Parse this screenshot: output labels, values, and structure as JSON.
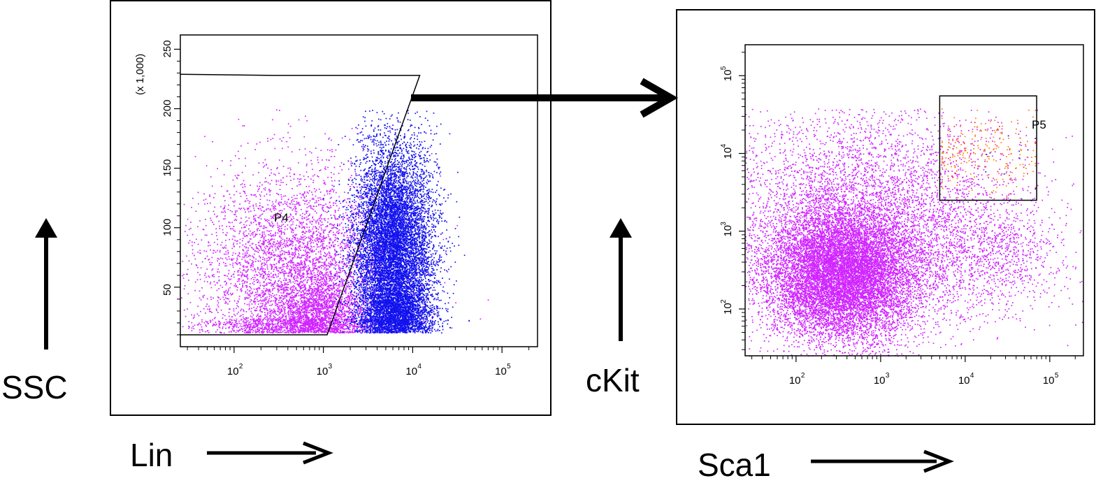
{
  "figure": {
    "ssc_label": "SSC",
    "ckit_label": "cKit",
    "lin_label": "Lin",
    "sca1_label": "Sca1"
  },
  "colors": {
    "magenta": "#d024ff",
    "blue": "#1212ee",
    "orange": "#ff7a1a",
    "red": "#ff1d2a",
    "axis": "#000000"
  },
  "chart_data": [
    {
      "type": "scatter",
      "name": "left-plot",
      "title": "",
      "xlabel": "Lin",
      "ylabel": "SSC",
      "x_scale": "log",
      "x_range": [
        25,
        250000
      ],
      "x_ticks": [
        {
          "value": 100,
          "base": "10",
          "exp": "2"
        },
        {
          "value": 1000,
          "base": "10",
          "exp": "3"
        },
        {
          "value": 10000,
          "base": "10",
          "exp": "4"
        },
        {
          "value": 100000,
          "base": "10",
          "exp": "5"
        }
      ],
      "y_scale": "linear",
      "y_range": [
        0,
        262000
      ],
      "y_multiplier": "(x 1,000)",
      "y_ticks": [
        50,
        100,
        150,
        200,
        250
      ],
      "grid": false,
      "gate": {
        "label": "P4",
        "vertices": [
          [
            25,
            229
          ],
          [
            270,
            228
          ],
          [
            12000,
            228
          ],
          [
            1100,
            10
          ],
          [
            400,
            10
          ],
          [
            25,
            10
          ]
        ]
      },
      "populations": [
        {
          "color": "magenta",
          "cx": 500,
          "cy": 60,
          "sx": 0.55,
          "sy": 45,
          "n": 5200
        },
        {
          "color": "magenta",
          "cx": 800,
          "cy": 30,
          "sx": 0.25,
          "sy": 14,
          "n": 1400
        },
        {
          "color": "blue",
          "cx": 6000,
          "cy": 85,
          "sx": 0.22,
          "sy": 42,
          "n": 9000
        },
        {
          "color": "blue",
          "cx": 6500,
          "cy": 30,
          "sx": 0.2,
          "sy": 12,
          "n": 2200
        }
      ]
    },
    {
      "type": "scatter",
      "name": "right-plot",
      "title": "",
      "xlabel": "Sca1",
      "ylabel": "cKit",
      "x_scale": "log",
      "x_range": [
        25,
        250000
      ],
      "x_ticks": [
        {
          "value": 100,
          "base": "10",
          "exp": "2"
        },
        {
          "value": 1000,
          "base": "10",
          "exp": "3"
        },
        {
          "value": 10000,
          "base": "10",
          "exp": "4"
        },
        {
          "value": 100000,
          "base": "10",
          "exp": "5"
        }
      ],
      "y_scale": "log",
      "y_range": [
        25,
        250000
      ],
      "y_ticks": [
        {
          "value": 100,
          "base": "10",
          "exp": "2"
        },
        {
          "value": 1000,
          "base": "10",
          "exp": "3"
        },
        {
          "value": 10000,
          "base": "10",
          "exp": "4"
        },
        {
          "value": 100000,
          "base": "10",
          "exp": "5"
        }
      ],
      "grid": false,
      "gate": {
        "label": "P5",
        "x": [
          5000,
          70000
        ],
        "y": [
          2500,
          55000
        ]
      },
      "populations": [
        {
          "color": "magenta",
          "cx": 350,
          "cy": 280,
          "sx": 0.45,
          "sy": 0.42,
          "n": 11000
        },
        {
          "color": "magenta",
          "cx": 600,
          "cy": 1500,
          "sx": 0.9,
          "sy": 0.75,
          "n": 5500
        },
        {
          "color": "magenta",
          "cx": 20000,
          "cy": 500,
          "sx": 0.45,
          "sy": 0.35,
          "n": 900
        },
        {
          "color": "orange",
          "cx": 15000,
          "cy": 10000,
          "sx": 0.35,
          "sy": 0.28,
          "n": 230
        },
        {
          "color": "red",
          "cx": 20000,
          "cy": 9000,
          "sx": 0.35,
          "sy": 0.25,
          "n": 22
        },
        {
          "color": "blue",
          "cx": 35000,
          "cy": 10000,
          "sx": 0.2,
          "sy": 0.2,
          "n": 10
        }
      ]
    }
  ]
}
